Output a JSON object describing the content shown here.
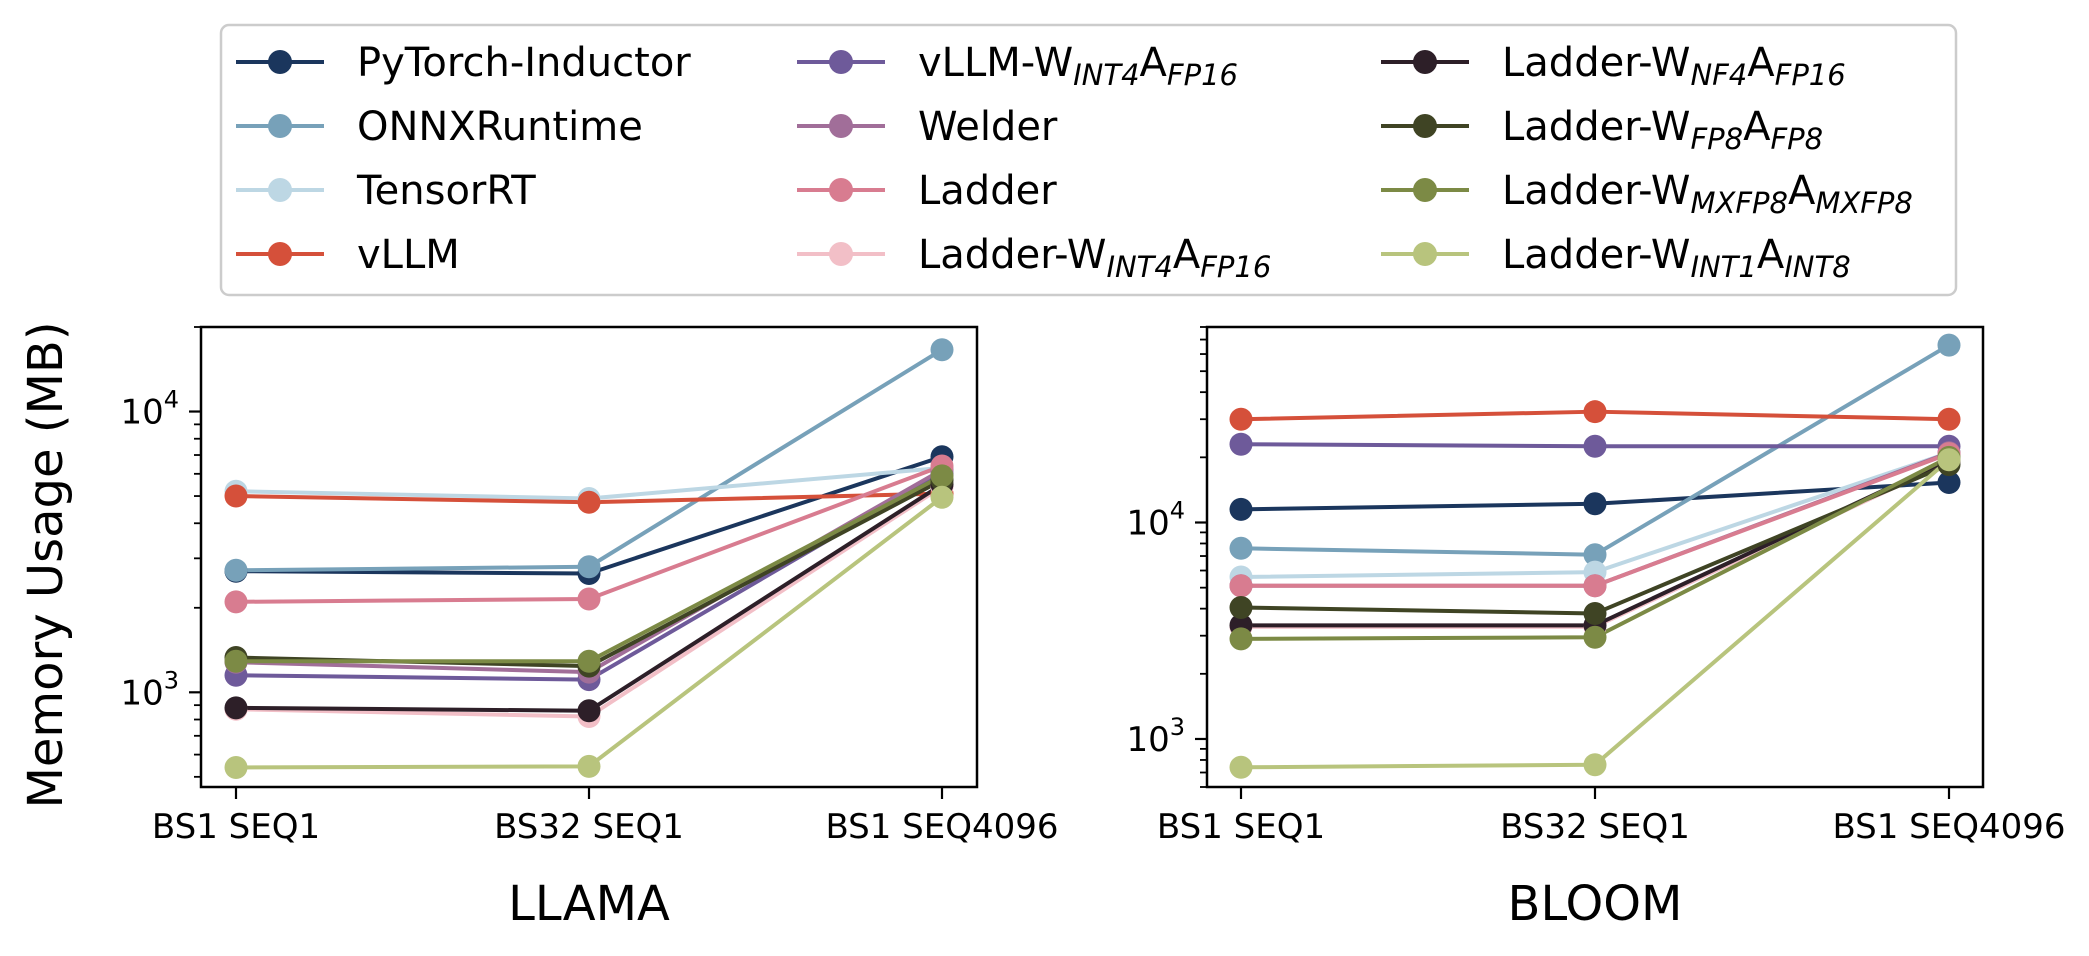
{
  "chart_data": [
    {
      "type": "line",
      "title": "",
      "xlabel": "LLAMA",
      "ylabel": "Memory Usage (MB)",
      "yscale": "log",
      "ylim": [
        460,
        20000
      ],
      "categories": [
        "BS1 SEQ1",
        "BS32 SEQ1",
        "BS1 SEQ4096"
      ],
      "y_ticks": [
        {
          "base": "10",
          "exp": "3",
          "value": 1000
        },
        {
          "base": "10",
          "exp": "4",
          "value": 10000
        }
      ],
      "grid": false,
      "series": [
        {
          "key": "pytorch_inductor",
          "values": [
            2700,
            2650,
            6900
          ]
        },
        {
          "key": "onnxruntime",
          "values": [
            2720,
            2800,
            16600
          ]
        },
        {
          "key": "tensorrt",
          "values": [
            5200,
            4900,
            6300
          ]
        },
        {
          "key": "vllm",
          "values": [
            5000,
            4750,
            5100
          ]
        },
        {
          "key": "vllm_w_int4_a_fp16",
          "values": [
            1150,
            1110,
            6000
          ]
        },
        {
          "key": "welder",
          "values": [
            1280,
            1180,
            6200
          ]
        },
        {
          "key": "ladder",
          "values": [
            2100,
            2150,
            6400
          ]
        },
        {
          "key": "ladder_w_int4_a_fp16",
          "values": [
            870,
            820,
            5400
          ]
        },
        {
          "key": "ladder_w_nf4_a_fp16",
          "values": [
            880,
            860,
            5500
          ]
        },
        {
          "key": "ladder_w_fp8_a_fp8",
          "values": [
            1330,
            1240,
            5700
          ]
        },
        {
          "key": "ladder_w_mxfp8_a_mxfp8",
          "values": [
            1290,
            1290,
            5900
          ]
        },
        {
          "key": "ladder_w_int1_a_int8",
          "values": [
            540,
            545,
            4950
          ]
        }
      ]
    },
    {
      "type": "line",
      "title": "",
      "xlabel": "BLOOM",
      "ylabel": "Memory Usage (MB)",
      "yscale": "log",
      "ylim": [
        600,
        80000
      ],
      "categories": [
        "BS1 SEQ1",
        "BS32 SEQ1",
        "BS1 SEQ4096"
      ],
      "y_ticks": [
        {
          "base": "10",
          "exp": "3",
          "value": 1000
        },
        {
          "base": "10",
          "exp": "4",
          "value": 10000
        }
      ],
      "grid": false,
      "series": [
        {
          "key": "pytorch_inductor",
          "values": [
            11500,
            12200,
            15300
          ]
        },
        {
          "key": "onnxruntime",
          "values": [
            7600,
            7100,
            66000
          ]
        },
        {
          "key": "tensorrt",
          "values": [
            5600,
            5900,
            21000
          ]
        },
        {
          "key": "vllm",
          "values": [
            30000,
            32500,
            30000
          ]
        },
        {
          "key": "vllm_w_int4_a_fp16",
          "values": [
            23000,
            22500,
            22500
          ]
        },
        {
          "key": "welder",
          "values": [
            5100,
            5100,
            21000
          ]
        },
        {
          "key": "ladder",
          "values": [
            5100,
            5100,
            20800
          ]
        },
        {
          "key": "ladder_w_int4_a_fp16",
          "values": [
            3300,
            3300,
            19000
          ]
        },
        {
          "key": "ladder_w_nf4_a_fp16",
          "values": [
            3350,
            3350,
            19500
          ]
        },
        {
          "key": "ladder_w_fp8_a_fp8",
          "values": [
            4050,
            3800,
            18500
          ]
        },
        {
          "key": "ladder_w_mxfp8_a_mxfp8",
          "values": [
            2900,
            2950,
            20000
          ]
        },
        {
          "key": "ladder_w_int1_a_int8",
          "values": [
            740,
            760,
            19500
          ]
        }
      ]
    }
  ],
  "legend": {
    "placement": "top",
    "entries": [
      {
        "key": "pytorch_inductor",
        "parts": [
          {
            "t": "PyTorch-Inductor"
          }
        ],
        "color": "#1b365d"
      },
      {
        "key": "onnxruntime",
        "parts": [
          {
            "t": "ONNXRuntime"
          }
        ],
        "color": "#77a1b9"
      },
      {
        "key": "tensorrt",
        "parts": [
          {
            "t": "TensorRT"
          }
        ],
        "color": "#bdd7e4"
      },
      {
        "key": "vllm",
        "parts": [
          {
            "t": "vLLM"
          }
        ],
        "color": "#d5503a"
      },
      {
        "key": "vllm_w_int4_a_fp16",
        "parts": [
          {
            "t": "vLLM-W"
          },
          {
            "t": "INT4",
            "sub": true
          },
          {
            "t": "A"
          },
          {
            "t": "FP16",
            "sub": true
          }
        ],
        "color": "#6e5a9a"
      },
      {
        "key": "welder",
        "parts": [
          {
            "t": "Welder"
          }
        ],
        "color": "#a16e99"
      },
      {
        "key": "ladder",
        "parts": [
          {
            "t": "Ladder"
          }
        ],
        "color": "#d87c90"
      },
      {
        "key": "ladder_w_int4_a_fp16",
        "parts": [
          {
            "t": "Ladder-W"
          },
          {
            "t": "INT4",
            "sub": true
          },
          {
            "t": "A"
          },
          {
            "t": "FP16",
            "sub": true
          }
        ],
        "color": "#f2bfc7"
      },
      {
        "key": "ladder_w_nf4_a_fp16",
        "parts": [
          {
            "t": "Ladder-W"
          },
          {
            "t": "NF4",
            "sub": true
          },
          {
            "t": "A"
          },
          {
            "t": "FP16",
            "sub": true
          }
        ],
        "color": "#2d1f28"
      },
      {
        "key": "ladder_w_fp8_a_fp8",
        "parts": [
          {
            "t": "Ladder-W"
          },
          {
            "t": "FP8",
            "sub": true
          },
          {
            "t": "A"
          },
          {
            "t": "FP8",
            "sub": true
          }
        ],
        "color": "#3f4424"
      },
      {
        "key": "ladder_w_mxfp8_a_mxfp8",
        "parts": [
          {
            "t": "Ladder-W"
          },
          {
            "t": "MXFP8",
            "sub": true
          },
          {
            "t": "A"
          },
          {
            "t": "MXFP8",
            "sub": true
          }
        ],
        "color": "#7c8a45"
      },
      {
        "key": "ladder_w_int1_a_int8",
        "parts": [
          {
            "t": "Ladder-W"
          },
          {
            "t": "INT1",
            "sub": true
          },
          {
            "t": "A"
          },
          {
            "t": "INT8",
            "sub": true
          }
        ],
        "color": "#b8c47d"
      }
    ]
  }
}
